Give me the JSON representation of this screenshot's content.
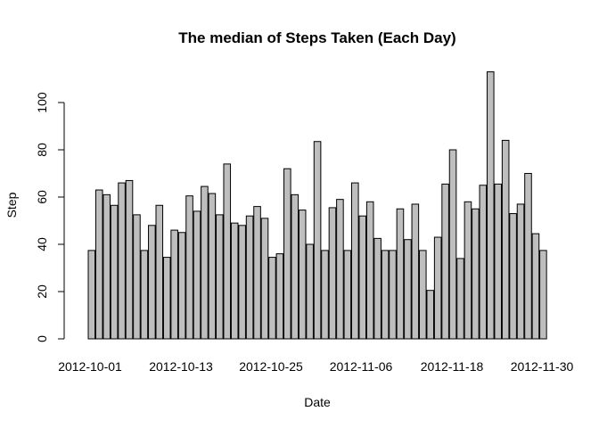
{
  "chart_data": {
    "type": "bar",
    "title": "The median of Steps Taken (Each Day)",
    "xlabel": "Date",
    "ylabel": "Step",
    "ylim": [
      0,
      113
    ],
    "yticks": [
      0,
      20,
      40,
      60,
      80,
      100
    ],
    "bar_color": "#bebebe",
    "grid": false,
    "categories": [
      "2012-10-01",
      "2012-10-02",
      "2012-10-03",
      "2012-10-04",
      "2012-10-05",
      "2012-10-06",
      "2012-10-07",
      "2012-10-08",
      "2012-10-09",
      "2012-10-10",
      "2012-10-11",
      "2012-10-12",
      "2012-10-13",
      "2012-10-14",
      "2012-10-15",
      "2012-10-16",
      "2012-10-17",
      "2012-10-18",
      "2012-10-19",
      "2012-10-20",
      "2012-10-21",
      "2012-10-22",
      "2012-10-23",
      "2012-10-24",
      "2012-10-25",
      "2012-10-26",
      "2012-10-27",
      "2012-10-28",
      "2012-10-29",
      "2012-10-30",
      "2012-10-31",
      "2012-11-01",
      "2012-11-02",
      "2012-11-03",
      "2012-11-04",
      "2012-11-05",
      "2012-11-06",
      "2012-11-07",
      "2012-11-08",
      "2012-11-09",
      "2012-11-10",
      "2012-11-11",
      "2012-11-12",
      "2012-11-13",
      "2012-11-14",
      "2012-11-15",
      "2012-11-16",
      "2012-11-17",
      "2012-11-18",
      "2012-11-19",
      "2012-11-20",
      "2012-11-21",
      "2012-11-22",
      "2012-11-23",
      "2012-11-24",
      "2012-11-25",
      "2012-11-26",
      "2012-11-27",
      "2012-11-28",
      "2012-11-29",
      "2012-11-30"
    ],
    "values": [
      37.4,
      63.0,
      61.0,
      56.5,
      66.0,
      67.0,
      52.5,
      37.4,
      48.0,
      56.5,
      34.5,
      46.0,
      45.0,
      60.5,
      54.0,
      64.5,
      61.5,
      52.5,
      74.0,
      49.0,
      48.0,
      52.0,
      56.0,
      51.0,
      34.5,
      36.0,
      72.0,
      61.0,
      54.5,
      40.0,
      83.5,
      37.4,
      55.5,
      59.0,
      37.4,
      66.0,
      52.0,
      58.0,
      42.5,
      37.4,
      37.4,
      55.0,
      42.0,
      57.0,
      37.4,
      20.5,
      43.0,
      65.5,
      80.0,
      34.0,
      58.0,
      55.0,
      65.0,
      113.0,
      65.5,
      84.0,
      53.0,
      57.0,
      70.0,
      44.5,
      37.4
    ],
    "xtick_labels": [
      "2012-10-01",
      "2012-10-13",
      "2012-10-25",
      "2012-11-06",
      "2012-11-18",
      "2012-11-30"
    ]
  }
}
